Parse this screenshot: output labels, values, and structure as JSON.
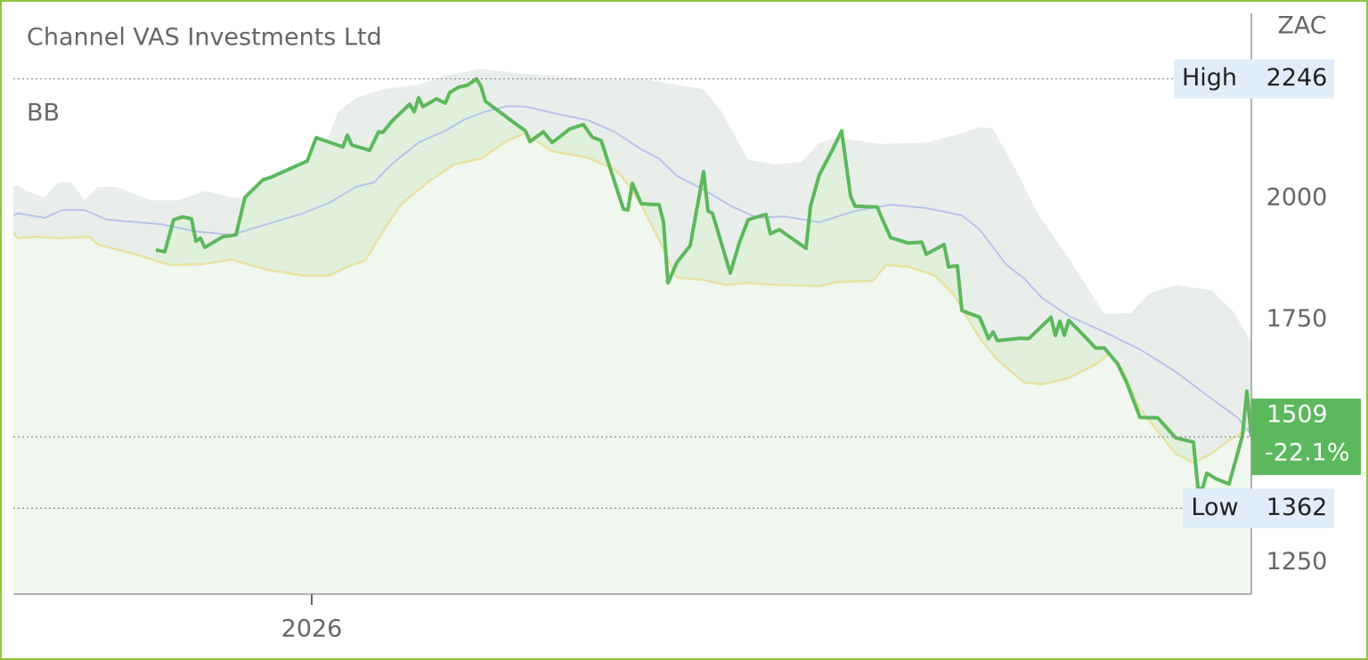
{
  "chart_data": {
    "type": "line",
    "title": "Channel VAS Investments Ltd",
    "currency": "ZAC",
    "xlim": [
      0,
      278
    ],
    "xticks": [
      {
        "value": 67,
        "label": "2026"
      }
    ],
    "ylim": [
      1185,
      2381
    ],
    "yticks": [
      1250,
      1750,
      2000
    ],
    "grid": false,
    "price": {
      "color": "#5cb85c",
      "fill": "#e0f0dc",
      "x": [
        32,
        34,
        36,
        38,
        40,
        41,
        42,
        43,
        47,
        50,
        52,
        56,
        58,
        66,
        68,
        74,
        75,
        76,
        80,
        82,
        83,
        85,
        89,
        90,
        91,
        92,
        95,
        97,
        98,
        100,
        102,
        104,
        105,
        106,
        113,
        115,
        116,
        119,
        121,
        125,
        128,
        130,
        132,
        137,
        138,
        139,
        141,
        145,
        146,
        147,
        149,
        152,
        155,
        156,
        157,
        161,
        163,
        165,
        169,
        170,
        172,
        178,
        179,
        181,
        184,
        186,
        188,
        189,
        194,
        195,
        197,
        201,
        204,
        205,
        209,
        210,
        212,
        213,
        217,
        219,
        220,
        221,
        226,
        228,
        233,
        234,
        235,
        236,
        237,
        241,
        243,
        245,
        248,
        250,
        252,
        253,
        257,
        261,
        265,
        266,
        267,
        268,
        270,
        273,
        276,
        277,
        278
      ],
      "values": [
        1894,
        1890,
        1956,
        1962,
        1958,
        1912,
        1918,
        1899,
        1921,
        1925,
        2002,
        2038,
        2044,
        2077,
        2125,
        2106,
        2130,
        2110,
        2099,
        2137,
        2136,
        2159,
        2194,
        2178,
        2207,
        2189,
        2205,
        2196,
        2218,
        2229,
        2233,
        2246,
        2231,
        2200,
        2152,
        2139,
        2117,
        2137,
        2115,
        2143,
        2152,
        2126,
        2119,
        1978,
        1976,
        2031,
        1989,
        1987,
        1951,
        1826,
        1868,
        1903,
        2055,
        1974,
        1969,
        1846,
        1908,
        1956,
        1967,
        1927,
        1936,
        1897,
        1984,
        2049,
        2101,
        2139,
        2005,
        1984,
        1982,
        1960,
        1919,
        1908,
        1910,
        1885,
        1905,
        1859,
        1861,
        1769,
        1755,
        1711,
        1725,
        1707,
        1712,
        1711,
        1755,
        1718,
        1747,
        1718,
        1749,
        1712,
        1692,
        1692,
        1659,
        1621,
        1573,
        1549,
        1548,
        1507,
        1498,
        1405,
        1401,
        1434,
        1423,
        1412,
        1511,
        1603,
        1509
      ]
    },
    "bb": {
      "label": "BB",
      "fill": "#e9eeeb",
      "lower_fill": "#eff7ee",
      "upper": {
        "color": "#e9eeeb",
        "x": [
          0,
          1,
          3,
          7,
          10,
          13,
          16,
          19,
          23,
          31,
          37,
          43,
          49,
          57,
          61,
          65,
          69,
          73,
          77,
          83,
          91,
          97,
          105,
          113,
          121,
          133,
          141,
          149,
          155,
          159,
          165,
          171,
          177,
          181,
          185,
          195,
          205,
          213,
          217,
          220,
          225,
          230,
          237,
          245,
          251,
          255,
          261,
          269,
          274,
          278
        ],
        "values": [
          2024,
          2027,
          2015,
          2002,
          2033,
          2033,
          1996,
          2024,
          2024,
          1996,
          1996,
          2015,
          2002,
          1996,
          2002,
          2015,
          2088,
          2179,
          2207,
          2225,
          2234,
          2253,
          2267,
          2258,
          2253,
          2244,
          2247,
          2234,
          2225,
          2179,
          2079,
          2070,
          2075,
          2115,
          2125,
          2112,
          2115,
          2134,
          2147,
          2143,
          2060,
          1969,
          1877,
          1762,
          1764,
          1804,
          1822,
          1811,
          1767,
          1703
        ]
      },
      "middle": {
        "color": "#b9c3ea",
        "x": [
          0,
          1,
          7,
          11,
          16,
          21,
          33,
          41,
          49,
          57,
          65,
          71,
          77,
          81,
          85,
          91,
          97,
          101,
          106,
          111,
          115,
          121,
          129,
          135,
          141,
          145,
          149,
          155,
          161,
          167,
          173,
          181,
          189,
          197,
          205,
          213,
          217,
          223,
          227,
          231,
          237,
          245,
          253,
          261,
          269,
          275,
          278
        ],
        "values": [
          1965,
          1969,
          1960,
          1976,
          1976,
          1956,
          1947,
          1932,
          1925,
          1947,
          1969,
          1991,
          2024,
          2033,
          2071,
          2115,
          2139,
          2161,
          2179,
          2190,
          2189,
          2176,
          2161,
          2137,
          2101,
          2082,
          2046,
          2018,
          1985,
          1960,
          1963,
          1951,
          1974,
          1987,
          1980,
          1965,
          1936,
          1863,
          1835,
          1795,
          1758,
          1725,
          1689,
          1643,
          1588,
          1548,
          1513
        ]
      },
      "lower": {
        "color": "#e8e2a2",
        "x": [
          0,
          1,
          5,
          11,
          17,
          19,
          27,
          35,
          42,
          49,
          57,
          65,
          71,
          75,
          79,
          83,
          87,
          93,
          99,
          105,
          111,
          115,
          121,
          129,
          135,
          137,
          141,
          145,
          149,
          155,
          160,
          165,
          171,
          177,
          181,
          185,
          193,
          196,
          201,
          207,
          211,
          217,
          221,
          227,
          231,
          237,
          243,
          246,
          249,
          253,
          257,
          261,
          265,
          269,
          273,
          278
        ],
        "values": [
          1929,
          1918,
          1921,
          1918,
          1921,
          1905,
          1886,
          1863,
          1864,
          1874,
          1853,
          1841,
          1841,
          1859,
          1872,
          1932,
          1987,
          2033,
          2070,
          2082,
          2119,
          2134,
          2097,
          2084,
          2060,
          2042,
          1987,
          1914,
          1837,
          1832,
          1822,
          1826,
          1822,
          1821,
          1819,
          1828,
          1830,
          1863,
          1859,
          1841,
          1804,
          1712,
          1667,
          1621,
          1617,
          1630,
          1658,
          1679,
          1648,
          1566,
          1520,
          1474,
          1456,
          1474,
          1502,
          1529
        ]
      }
    },
    "high": {
      "label": "High",
      "value": 2246
    },
    "low": {
      "label": "Low",
      "value": 1362
    },
    "last": {
      "value": 1509,
      "change": "-22.1%"
    }
  }
}
